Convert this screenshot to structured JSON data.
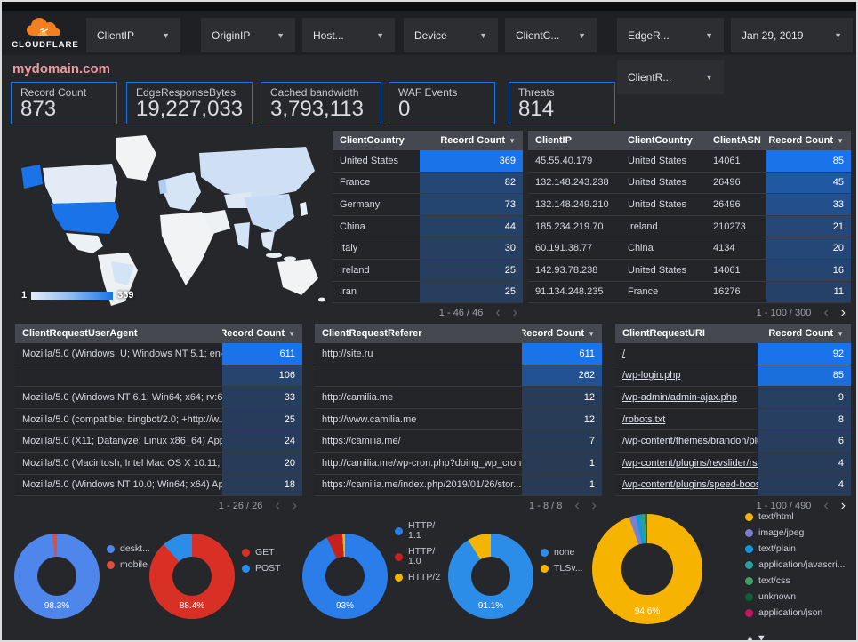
{
  "header": {
    "brand": "CLOUDFLARE",
    "filters": [
      "ClientIP",
      "OriginIP",
      "Host...",
      "Device",
      "ClientC...",
      "EdgeR..."
    ],
    "date_filter": "Jan 29, 2019",
    "secondary_filter": "ClientR..."
  },
  "page_title": "mydomain.com",
  "scorecards": [
    {
      "label": "Record Count",
      "value": "873"
    },
    {
      "label": "EdgeResponseBytes",
      "value": "19,227,033"
    },
    {
      "label": "Cached bandwidth",
      "value": "3,793,113"
    },
    {
      "label": "WAF Events",
      "value": "0"
    },
    {
      "label": "Threats",
      "value": "814"
    }
  ],
  "map": {
    "legend_min": "1",
    "legend_max": "369"
  },
  "colors": {
    "accent": "#1a73e8",
    "heatmap_low": "#283a54",
    "heatmap_high": "#1a73e8"
  },
  "tables": [
    {
      "id": "client_country",
      "columns": [
        {
          "label": "ClientCountry"
        },
        {
          "label": "Record Count",
          "sort": true,
          "heatmap": true,
          "num": true
        }
      ],
      "rows": [
        [
          "United States",
          369
        ],
        [
          "France",
          82
        ],
        [
          "Germany",
          73
        ],
        [
          "China",
          44
        ],
        [
          "Italy",
          30
        ],
        [
          "Ireland",
          25
        ],
        [
          "Iran",
          25
        ]
      ],
      "max": 369,
      "pagination": "1 - 46 / 46",
      "prev_enabled": false,
      "next_enabled": false
    },
    {
      "id": "client_ip",
      "columns": [
        {
          "label": "ClientIP"
        },
        {
          "label": "ClientCountry"
        },
        {
          "label": "ClientASN"
        },
        {
          "label": "Record Count",
          "sort": true,
          "heatmap": true,
          "num": true
        }
      ],
      "rows": [
        [
          "45.55.40.179",
          "United States",
          "14061",
          85
        ],
        [
          "132.148.243.238",
          "United States",
          "26496",
          45
        ],
        [
          "132.148.249.210",
          "United States",
          "26496",
          33
        ],
        [
          "185.234.219.70",
          "Ireland",
          "210273",
          21
        ],
        [
          "60.191.38.77",
          "China",
          "4134",
          20
        ],
        [
          "142.93.78.238",
          "United States",
          "14061",
          16
        ],
        [
          "91.134.248.235",
          "France",
          "16276",
          11
        ]
      ],
      "max": 85,
      "pagination": "1 - 100 / 300",
      "prev_enabled": false,
      "next_enabled": true
    },
    {
      "id": "user_agent",
      "columns": [
        {
          "label": "ClientRequestUserAgent"
        },
        {
          "label": "Record Count",
          "sort": true,
          "heatmap": true,
          "num": true
        }
      ],
      "rows": [
        [
          "Mozilla/5.0 (Windows; U; Windows NT 5.1; en-U...",
          611
        ],
        [
          "",
          106
        ],
        [
          "Mozilla/5.0 (Windows NT 6.1; Win64; x64; rv:64...",
          33
        ],
        [
          "Mozilla/5.0 (compatible; bingbot/2.0; +http://w...",
          25
        ],
        [
          "Mozilla/5.0 (X11; Datanyze; Linux x86_64) Appl...",
          24
        ],
        [
          "Mozilla/5.0 (Macintosh; Intel Mac OS X 10.11; r...",
          20
        ],
        [
          "Mozilla/5.0 (Windows NT 10.0; Win64; x64) App...",
          18
        ]
      ],
      "max": 611,
      "pagination": "1 - 26 / 26",
      "prev_enabled": false,
      "next_enabled": false
    },
    {
      "id": "referer",
      "columns": [
        {
          "label": "ClientRequestReferer"
        },
        {
          "label": "Record Count",
          "sort": true,
          "heatmap": true,
          "num": true
        }
      ],
      "rows": [
        [
          "http://site.ru",
          611
        ],
        [
          "",
          262
        ],
        [
          "http://camilia.me",
          12
        ],
        [
          "http://www.camilia.me",
          12
        ],
        [
          "https://camilia.me/",
          7
        ],
        [
          "http://camilia.me/wp-cron.php?doing_wp_cron...",
          1
        ],
        [
          "https://camilia.me/index.php/2019/01/26/stor...",
          1
        ]
      ],
      "max": 611,
      "pagination": "1 - 8 / 8",
      "prev_enabled": false,
      "next_enabled": false
    },
    {
      "id": "uri",
      "links": true,
      "columns": [
        {
          "label": "ClientRequestURI"
        },
        {
          "label": "Record Count",
          "sort": true,
          "heatmap": true,
          "num": true
        }
      ],
      "rows": [
        [
          "/",
          92
        ],
        [
          "/wp-login.php",
          85
        ],
        [
          "/wp-admin/admin-ajax.php",
          9
        ],
        [
          "/robots.txt",
          8
        ],
        [
          "/wp-content/themes/brandon/plu...",
          6
        ],
        [
          "/wp-content/plugins/revslider/rs-p...",
          4
        ],
        [
          "/wp-content/plugins/speed-booste...",
          4
        ]
      ],
      "max": 92,
      "pagination": "1 - 100 / 490",
      "prev_enabled": false,
      "next_enabled": true
    }
  ],
  "donuts": [
    {
      "id": "device-type",
      "label": "98.3%",
      "slices": [
        {
          "name": "deskt...",
          "pct": 98.3,
          "color": "#4e86ec"
        },
        {
          "name": "mobile",
          "pct": 1.7,
          "color": "#dd4f3c"
        }
      ]
    },
    {
      "id": "request-method",
      "label": "88.4%",
      "slices": [
        {
          "name": "GET",
          "pct": 88.4,
          "color": "#d93025"
        },
        {
          "name": "POST",
          "pct": 11.6,
          "color": "#2b8de8"
        }
      ]
    },
    {
      "id": "http-version",
      "label": "93%",
      "slices": [
        {
          "name": "HTTP/ 1.1",
          "pct": 93,
          "color": "#2b7de9"
        },
        {
          "name": "HTTP/ 1.0",
          "pct": 6,
          "color": "#c5221f"
        },
        {
          "name": "HTTP/2",
          "pct": 1,
          "color": "#f4b400"
        }
      ]
    },
    {
      "id": "tls-version",
      "label": "91.1%",
      "slices": [
        {
          "name": "none",
          "pct": 91.1,
          "color": "#2b8de8"
        },
        {
          "name": "TLSv...",
          "pct": 8.9,
          "color": "#f4b400"
        }
      ]
    },
    {
      "id": "content-type",
      "label": "94.6%",
      "big": true,
      "arrows": true,
      "slices": [
        {
          "name": "text/html",
          "pct": 94.6,
          "color": "#f6b300"
        },
        {
          "name": "image/jpeg",
          "pct": 2.0,
          "color": "#7a7fd0"
        },
        {
          "name": "text/plain",
          "pct": 1.2,
          "color": "#0f9ae0"
        },
        {
          "name": "application/javascri...",
          "pct": 0.9,
          "color": "#2a9d9c"
        },
        {
          "name": "text/css",
          "pct": 0.6,
          "color": "#3ea164"
        },
        {
          "name": "unknown",
          "pct": 0.4,
          "color": "#0e5e37"
        },
        {
          "name": "application/json",
          "pct": 0.3,
          "color": "#c2185b"
        }
      ]
    }
  ]
}
